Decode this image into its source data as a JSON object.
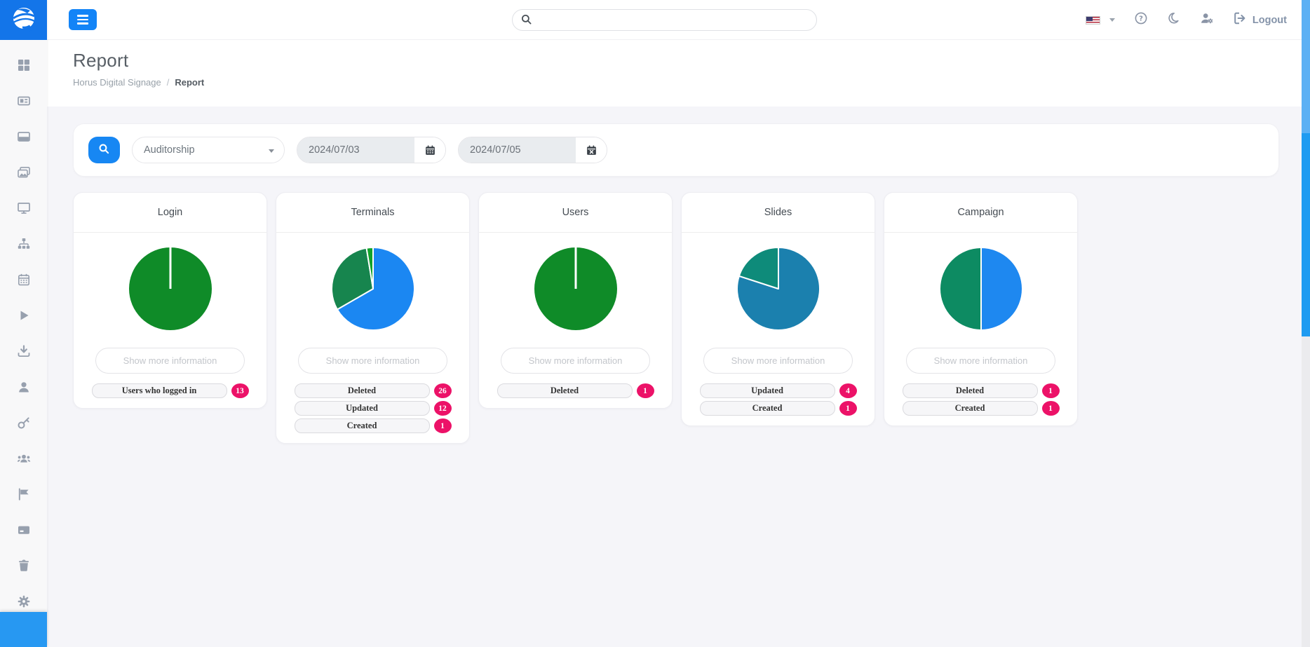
{
  "brand": {
    "logo_icon": "falcon-icon",
    "logo_bg": "#1375e9"
  },
  "topbar": {
    "search": {
      "placeholder": "",
      "value": "",
      "icon": "search-icon"
    },
    "actions": [
      {
        "name": "language-select",
        "icon": "us-flag-icon"
      },
      {
        "name": "help",
        "icon": "question-circle-icon"
      },
      {
        "name": "dark-mode",
        "icon": "moon-icon"
      },
      {
        "name": "account-settings",
        "icon": "user-gear-icon"
      },
      {
        "name": "logout",
        "icon": "logout-icon",
        "label": "Logout"
      }
    ]
  },
  "sidebar": {
    "items": [
      {
        "icon": "dashboard-icon"
      },
      {
        "icon": "newspaper-icon"
      },
      {
        "icon": "window-icon"
      },
      {
        "icon": "gallery-icon"
      },
      {
        "icon": "display-icon"
      },
      {
        "icon": "sitemap-icon"
      },
      {
        "icon": "calendar-side-icon"
      },
      {
        "icon": "play-icon"
      },
      {
        "icon": "download-icon"
      },
      {
        "icon": "user-icon"
      },
      {
        "icon": "key-icon"
      },
      {
        "icon": "users-icon"
      },
      {
        "icon": "flag-icon"
      },
      {
        "icon": "card-icon"
      },
      {
        "icon": "trash-icon"
      },
      {
        "icon": "settings-icon"
      }
    ]
  },
  "page": {
    "title": "Report",
    "breadcrumb": [
      {
        "label": "Horus Digital Signage",
        "active": false
      },
      {
        "label": "Report",
        "active": true
      }
    ],
    "separator": "/"
  },
  "filters": {
    "report_type": {
      "value": "Auditorship"
    },
    "date_from": {
      "value": "2024/07/03",
      "icon": "calendar-icon"
    },
    "date_to": {
      "value": "2024/07/05",
      "icon": "calendar-x-icon"
    }
  },
  "labels": {
    "show_more": "Show more information"
  },
  "cards": [
    {
      "title": "Login",
      "stats": [
        {
          "label": "Users who logged in",
          "value": 13
        }
      ]
    },
    {
      "title": "Terminals",
      "stats": [
        {
          "label": "Deleted",
          "value": 26
        },
        {
          "label": "Updated",
          "value": 12
        },
        {
          "label": "Created",
          "value": 1
        }
      ]
    },
    {
      "title": "Users",
      "stats": [
        {
          "label": "Deleted",
          "value": 1
        }
      ]
    },
    {
      "title": "Slides",
      "stats": [
        {
          "label": "Updated",
          "value": 4
        },
        {
          "label": "Created",
          "value": 1
        }
      ]
    },
    {
      "title": "Campaign",
      "stats": [
        {
          "label": "Deleted",
          "value": 1
        },
        {
          "label": "Created",
          "value": 1
        }
      ]
    }
  ],
  "chart_data": [
    {
      "type": "pie",
      "title": "Login",
      "labels": [
        "Users who logged in"
      ],
      "values": [
        13
      ],
      "colors": [
        "#0f8b28"
      ]
    },
    {
      "type": "pie",
      "title": "Terminals",
      "labels": [
        "Deleted",
        "Updated",
        "Created"
      ],
      "values": [
        26,
        12,
        1
      ],
      "colors": [
        "#1b87f2",
        "#17854e",
        "#12a32b"
      ]
    },
    {
      "type": "pie",
      "title": "Users",
      "labels": [
        "Deleted"
      ],
      "values": [
        1
      ],
      "colors": [
        "#0f8b28"
      ]
    },
    {
      "type": "pie",
      "title": "Slides",
      "labels": [
        "Updated",
        "Created"
      ],
      "values": [
        4,
        1
      ],
      "colors": [
        "#1b80ae",
        "#0e8b7a"
      ]
    },
    {
      "type": "pie",
      "title": "Campaign",
      "labels": [
        "Deleted",
        "Created"
      ],
      "values": [
        1,
        1
      ],
      "colors": [
        "#1e88f0",
        "#0d8b62"
      ]
    }
  ],
  "colors": {
    "primary": "#1787f3",
    "badge": "#ec1268",
    "sidebar_icon": "#97a0ae",
    "content_bg": "#f5f5f9"
  }
}
